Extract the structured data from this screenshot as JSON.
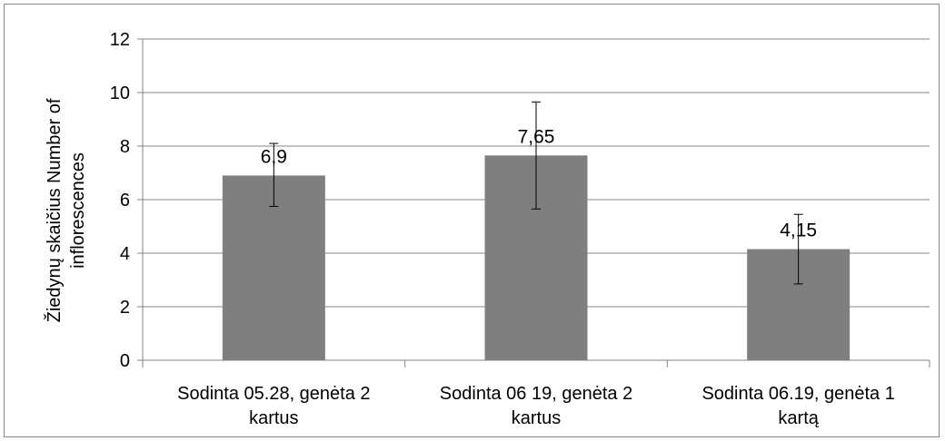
{
  "chart_data": {
    "type": "bar",
    "categories": [
      [
        "Sodinta 05.28, genėta 2",
        "kartus"
      ],
      [
        "Sodinta 06 19, genėta 2",
        "kartus"
      ],
      [
        "Sodinta 06.19, genėta 1",
        "kartą"
      ]
    ],
    "values": [
      6.9,
      7.65,
      4.15
    ],
    "value_labels": [
      "6,9",
      "7,65",
      "4,15"
    ],
    "error_low": [
      5.75,
      5.65,
      2.85
    ],
    "error_high": [
      8.1,
      9.65,
      5.45
    ],
    "ylabel": [
      "Žiedynų skaičius Number of",
      "inflorescences"
    ],
    "ylim": [
      0,
      12
    ],
    "yticks": [
      0,
      2,
      4,
      6,
      8,
      10,
      12
    ],
    "grid": true,
    "bar_color": "#7f7f7f",
    "grid_color": "#868686"
  }
}
